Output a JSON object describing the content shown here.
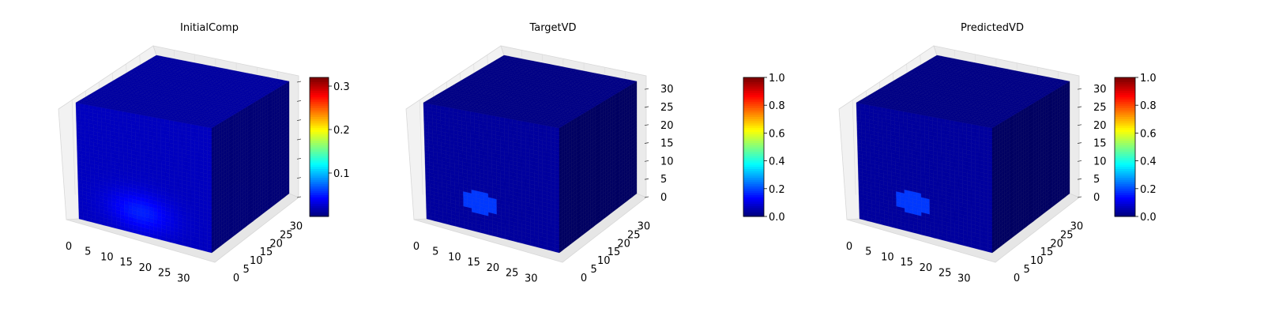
{
  "chart_data": [
    {
      "type": "heatmap",
      "title": "InitialComp",
      "x_ticks": [
        0,
        5,
        10,
        15,
        20,
        25,
        30
      ],
      "y_ticks": [
        0,
        5,
        10,
        15,
        20,
        25,
        30
      ],
      "z_ticks": [],
      "axis_range": [
        0,
        32
      ],
      "colorbar": {
        "cmap": "jet",
        "range": [
          0.0,
          0.32
        ],
        "ticks": [
          "0.1",
          "0.2",
          "0.3"
        ],
        "tick_values": [
          0.1,
          0.2,
          0.3
        ]
      },
      "background_value": 0.02,
      "blob": {
        "center": [
          15,
          25,
          6
        ],
        "radius": [
          9,
          7,
          6
        ],
        "value": 0.12,
        "style": "smooth"
      }
    },
    {
      "type": "heatmap",
      "title": "TargetVD",
      "x_ticks": [
        0,
        5,
        10,
        15,
        20,
        25,
        30
      ],
      "y_ticks": [
        0,
        5,
        10,
        15,
        20,
        25,
        30
      ],
      "z_ticks": [
        0,
        5,
        10,
        15,
        20,
        25,
        30
      ],
      "axis_range": [
        0,
        32
      ],
      "colorbar": {
        "cmap": "jet",
        "range": [
          0.0,
          1.0
        ],
        "ticks": [
          "0.0",
          "0.2",
          "0.4",
          "0.6",
          "0.8",
          "1.0"
        ],
        "tick_values": [
          0.0,
          0.2,
          0.4,
          0.6,
          0.8,
          1.0
        ]
      },
      "background_value": 0.03,
      "blob": {
        "center": [
          13,
          24,
          8
        ],
        "radius": [
          9,
          7,
          6
        ],
        "value": 1.0,
        "style": "sharp"
      }
    },
    {
      "type": "heatmap",
      "title": "PredictedVD",
      "x_ticks": [
        0,
        5,
        10,
        15,
        20,
        25,
        30
      ],
      "y_ticks": [
        0,
        5,
        10,
        15,
        20,
        25,
        30
      ],
      "z_ticks": [
        0,
        5,
        10,
        15,
        20,
        25,
        30
      ],
      "axis_range": [
        0,
        32
      ],
      "colorbar": {
        "cmap": "jet",
        "range": [
          0.0,
          1.0
        ],
        "ticks": [
          "0.0",
          "0.2",
          "0.4",
          "0.6",
          "0.8",
          "1.0"
        ],
        "tick_values": [
          0.0,
          0.2,
          0.4,
          0.6,
          0.8,
          1.0
        ]
      },
      "background_value": 0.03,
      "blob": {
        "center": [
          13,
          24,
          8
        ],
        "radius": [
          9,
          7,
          6
        ],
        "value": 1.0,
        "style": "sharp"
      }
    }
  ]
}
